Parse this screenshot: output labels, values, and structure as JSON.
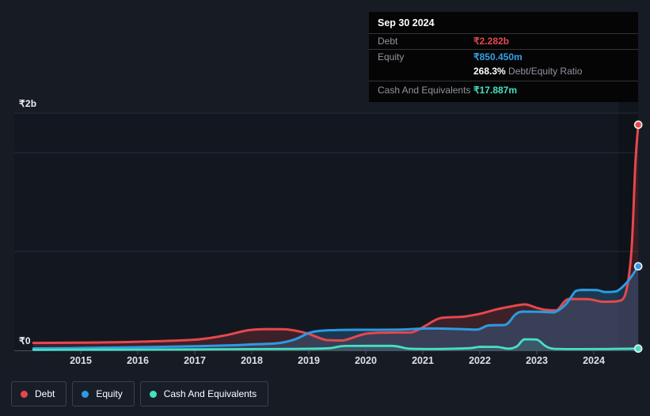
{
  "tooltip": {
    "date": "Sep 30 2024",
    "rows": [
      {
        "id": "debt",
        "label": "Debt",
        "value": "₹2.282b",
        "color": "#e5484d"
      },
      {
        "id": "equity",
        "label": "Equity",
        "value": "₹850.450m",
        "color": "#35a0e8"
      },
      {
        "id": "cash",
        "label": "Cash And Equivalents",
        "value": "₹17.887m",
        "color": "#45e0c0"
      }
    ],
    "ratio_bold": "268.3%",
    "ratio_label": "Debt/Equity Ratio"
  },
  "legend": {
    "items": [
      {
        "id": "debt",
        "label": "Debt",
        "color": "#e5484d"
      },
      {
        "id": "equity",
        "label": "Equity",
        "color": "#2e9ae2"
      },
      {
        "id": "cash",
        "label": "Cash And Equivalents",
        "color": "#45e0c0"
      }
    ]
  },
  "chart_data": {
    "type": "area",
    "title": "",
    "y_unit": "billions INR",
    "y_axis_labels": [
      "₹2b",
      "₹0"
    ],
    "ylim": [
      0,
      2.4
    ],
    "xlim": [
      2014.17,
      2024.83
    ],
    "x_ticks": [
      2015,
      2016,
      2017,
      2018,
      2019,
      2020,
      2021,
      2022,
      2023,
      2024
    ],
    "grid": "horizontal",
    "legend_position": "bottom",
    "series": [
      {
        "name": "Debt",
        "color": "#e5484d",
        "fill": "rgba(229,72,77,0.20)",
        "width": 3,
        "points": [
          [
            2014.17,
            0.075
          ],
          [
            2015,
            0.078
          ],
          [
            2016,
            0.087
          ],
          [
            2017,
            0.108
          ],
          [
            2017.5,
            0.148
          ],
          [
            2017.95,
            0.205
          ],
          [
            2018.3,
            0.215
          ],
          [
            2018.6,
            0.213
          ],
          [
            2018.95,
            0.175
          ],
          [
            2019.3,
            0.105
          ],
          [
            2019.6,
            0.1
          ],
          [
            2020,
            0.168
          ],
          [
            2020.4,
            0.18
          ],
          [
            2020.8,
            0.182
          ],
          [
            2021.05,
            0.25
          ],
          [
            2021.3,
            0.325
          ],
          [
            2021.7,
            0.34
          ],
          [
            2022,
            0.37
          ],
          [
            2022.3,
            0.415
          ],
          [
            2022.6,
            0.45
          ],
          [
            2022.8,
            0.465
          ],
          [
            2023,
            0.43
          ],
          [
            2023.15,
            0.41
          ],
          [
            2023.35,
            0.405
          ],
          [
            2023.55,
            0.52
          ],
          [
            2023.9,
            0.518
          ],
          [
            2024.15,
            0.492
          ],
          [
            2024.4,
            0.495
          ],
          [
            2024.55,
            0.56
          ],
          [
            2024.66,
            1.0
          ],
          [
            2024.73,
            1.9
          ],
          [
            2024.78,
            2.282
          ]
        ]
      },
      {
        "name": "Equity",
        "color": "#2e9ae2",
        "fill": "rgba(46,154,226,0.25)",
        "width": 3,
        "points": [
          [
            2014.17,
            0.02
          ],
          [
            2015,
            0.024
          ],
          [
            2016,
            0.032
          ],
          [
            2017,
            0.042
          ],
          [
            2017.7,
            0.052
          ],
          [
            2018,
            0.06
          ],
          [
            2018.45,
            0.072
          ],
          [
            2018.75,
            0.11
          ],
          [
            2019,
            0.175
          ],
          [
            2019.2,
            0.198
          ],
          [
            2019.5,
            0.206
          ],
          [
            2020,
            0.208
          ],
          [
            2020.6,
            0.21
          ],
          [
            2021.1,
            0.222
          ],
          [
            2021.55,
            0.217
          ],
          [
            2021.95,
            0.21
          ],
          [
            2022.15,
            0.252
          ],
          [
            2022.45,
            0.258
          ],
          [
            2022.62,
            0.36
          ],
          [
            2022.75,
            0.392
          ],
          [
            2023.05,
            0.39
          ],
          [
            2023.3,
            0.384
          ],
          [
            2023.5,
            0.46
          ],
          [
            2023.68,
            0.6
          ],
          [
            2023.8,
            0.612
          ],
          [
            2024.05,
            0.61
          ],
          [
            2024.2,
            0.59
          ],
          [
            2024.4,
            0.598
          ],
          [
            2024.6,
            0.7
          ],
          [
            2024.78,
            0.8504
          ]
        ]
      },
      {
        "name": "Cash And Equivalents",
        "color": "#45e0c0",
        "fill": "rgba(69,224,192,0.16)",
        "width": 2.8,
        "points": [
          [
            2014.17,
            0.006
          ],
          [
            2015,
            0.007
          ],
          [
            2016,
            0.008
          ],
          [
            2017,
            0.01
          ],
          [
            2018,
            0.013
          ],
          [
            2018.8,
            0.015
          ],
          [
            2019.35,
            0.022
          ],
          [
            2019.65,
            0.045
          ],
          [
            2020.45,
            0.046
          ],
          [
            2020.75,
            0.018
          ],
          [
            2021.2,
            0.014
          ],
          [
            2021.8,
            0.022
          ],
          [
            2022,
            0.036
          ],
          [
            2022.3,
            0.035
          ],
          [
            2022.5,
            0.017
          ],
          [
            2022.65,
            0.04
          ],
          [
            2022.78,
            0.112
          ],
          [
            2023,
            0.11
          ],
          [
            2023.15,
            0.045
          ],
          [
            2023.3,
            0.016
          ],
          [
            2023.7,
            0.013
          ],
          [
            2024.2,
            0.014
          ],
          [
            2024.78,
            0.0179
          ]
        ]
      }
    ]
  },
  "colors": {
    "background": "#161b24",
    "tooltip_bg": "#050506",
    "gridline": "#262c36",
    "axis": "#4a515c",
    "tick_label": "#dde0e5",
    "debt": "#e5484d",
    "equity": "#2e9ae2",
    "cash": "#45e0c0"
  }
}
